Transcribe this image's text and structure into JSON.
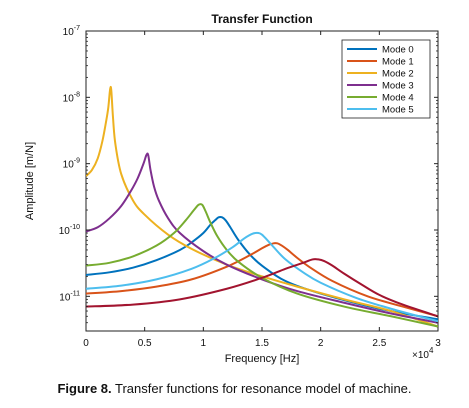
{
  "chart_data": {
    "type": "line",
    "title": "Transfer Function",
    "xlabel": "Frequency [Hz]",
    "ylabel": "Amplitude [m/N]",
    "x_multiplier_label": "×10",
    "x_multiplier_exp": "4",
    "xlim": [
      0,
      30000
    ],
    "ylim": [
      3e-12,
      1e-07
    ],
    "yscale": "log",
    "x_ticks": [
      0,
      5000,
      10000,
      15000,
      20000,
      25000,
      30000
    ],
    "x_tick_labels": [
      "0",
      "0.5",
      "1",
      "1.5",
      "2",
      "2.5",
      "3"
    ],
    "y_ticks": [
      1e-11,
      1e-10,
      1e-09,
      1e-08,
      1e-07
    ],
    "y_tick_base": "10",
    "y_tick_exps": [
      "-11",
      "-10",
      "-9",
      "-8",
      "-7"
    ],
    "grid": false,
    "legend_position": "top-right",
    "series": [
      {
        "name": "Mode 0",
        "color": "#0072BD",
        "x": [
          0,
          2000,
          4000,
          6000,
          8000,
          9000,
          10000,
          10600,
          11000,
          11300,
          11600,
          11900,
          12300,
          13000,
          14000,
          15000,
          17000,
          20000,
          25000,
          30000
        ],
        "y": [
          2.1e-11,
          2.3e-11,
          2.7e-11,
          3.5e-11,
          5e-11,
          6.5e-11,
          9e-11,
          1.2e-10,
          1.4e-10,
          1.55e-10,
          1.55e-10,
          1.4e-10,
          1.1e-10,
          7e-11,
          4.2e-11,
          2.9e-11,
          1.7e-11,
          1.1e-11,
          6.5e-12,
          4.5e-12
        ]
      },
      {
        "name": "Mode 1",
        "color": "#D95319",
        "x": [
          0,
          3000,
          6000,
          9000,
          12000,
          14000,
          15000,
          15600,
          16000,
          16300,
          16700,
          17200,
          18000,
          19000,
          21000,
          24000,
          27000,
          30000
        ],
        "y": [
          1.1e-11,
          1.2e-11,
          1.4e-11,
          1.8e-11,
          2.8e-11,
          4.2e-11,
          5.3e-11,
          6e-11,
          6.3e-11,
          6.3e-11,
          5.8e-11,
          5e-11,
          3.8e-11,
          2.8e-11,
          1.7e-11,
          1e-11,
          7e-12,
          5e-12
        ]
      },
      {
        "name": "Mode 2",
        "color": "#EDB120",
        "x": [
          0,
          500,
          1000,
          1400,
          1700,
          1900,
          2050,
          2150,
          2300,
          2500,
          3000,
          4000,
          5000,
          7000,
          9000,
          12000,
          15000,
          18000,
          22000,
          26000,
          30000
        ],
        "y": [
          6.5e-10,
          8e-10,
          1.2e-09,
          2.2e-09,
          4.2e-09,
          7e-09,
          1.3e-08,
          1.3e-08,
          5e-09,
          2e-09,
          7e-10,
          2.8e-10,
          1.7e-10,
          8.5e-11,
          5.2e-11,
          3e-11,
          2e-11,
          1.4e-11,
          9e-12,
          6e-12,
          3.5e-12
        ]
      },
      {
        "name": "Mode 3",
        "color": "#7E2F8E",
        "x": [
          0,
          1000,
          2000,
          3000,
          3800,
          4400,
          4900,
          5150,
          5300,
          5500,
          5800,
          6200,
          7000,
          8000,
          10000,
          12000,
          15000,
          18000,
          22000,
          26000,
          30000
        ],
        "y": [
          9.5e-11,
          1.1e-10,
          1.5e-10,
          2.3e-10,
          3.8e-10,
          6e-10,
          1e-09,
          1.35e-09,
          1.35e-09,
          8e-10,
          4.5e-10,
          2.8e-10,
          1.5e-10,
          9e-11,
          4.8e-11,
          3e-11,
          1.8e-11,
          1.2e-11,
          8e-12,
          5.5e-12,
          4e-12
        ]
      },
      {
        "name": "Mode 4",
        "color": "#77AC30",
        "x": [
          0,
          2000,
          4000,
          6000,
          7500,
          8500,
          9200,
          9600,
          9900,
          10200,
          10600,
          11200,
          12000,
          13000,
          15000,
          18000,
          22000,
          26000,
          30000
        ],
        "y": [
          2.9e-11,
          3.2e-11,
          4e-11,
          5.8e-11,
          9e-11,
          1.4e-10,
          2e-10,
          2.4e-10,
          2.4e-10,
          1.9e-10,
          1.3e-10,
          8e-11,
          5e-11,
          3.3e-11,
          1.9e-11,
          1.1e-11,
          7e-12,
          5e-12,
          3.5e-12
        ]
      },
      {
        "name": "Mode 5",
        "color": "#4DBEEE",
        "x": [
          0,
          3000,
          6000,
          9000,
          11000,
          12500,
          13500,
          14200,
          14700,
          15000,
          15400,
          16000,
          17000,
          18500,
          20000,
          23000,
          26000,
          30000
        ],
        "y": [
          1.3e-11,
          1.45e-11,
          1.8e-11,
          2.6e-11,
          3.8e-11,
          5.5e-11,
          7.5e-11,
          8.8e-11,
          9e-11,
          8.5e-11,
          7.2e-11,
          5.5e-11,
          3.6e-11,
          2.3e-11,
          1.6e-11,
          9.5e-12,
          6.5e-12,
          4.2e-12
        ]
      },
      {
        "name": "",
        "color": "#A2142F",
        "x": [
          0,
          4000,
          8000,
          12000,
          15000,
          17000,
          18500,
          19300,
          19800,
          20300,
          21000,
          22000,
          23500,
          25000,
          27000,
          30000
        ],
        "y": [
          7e-12,
          7.5e-12,
          9e-12,
          1.3e-11,
          1.9e-11,
          2.6e-11,
          3.2e-11,
          3.6e-11,
          3.6e-11,
          3.4e-11,
          2.9e-11,
          2.2e-11,
          1.5e-11,
          1.05e-11,
          7.5e-12,
          5e-12
        ]
      }
    ]
  },
  "caption": {
    "label": "Figure 8.",
    "text": " Transfer functions for resonance model of machine."
  }
}
